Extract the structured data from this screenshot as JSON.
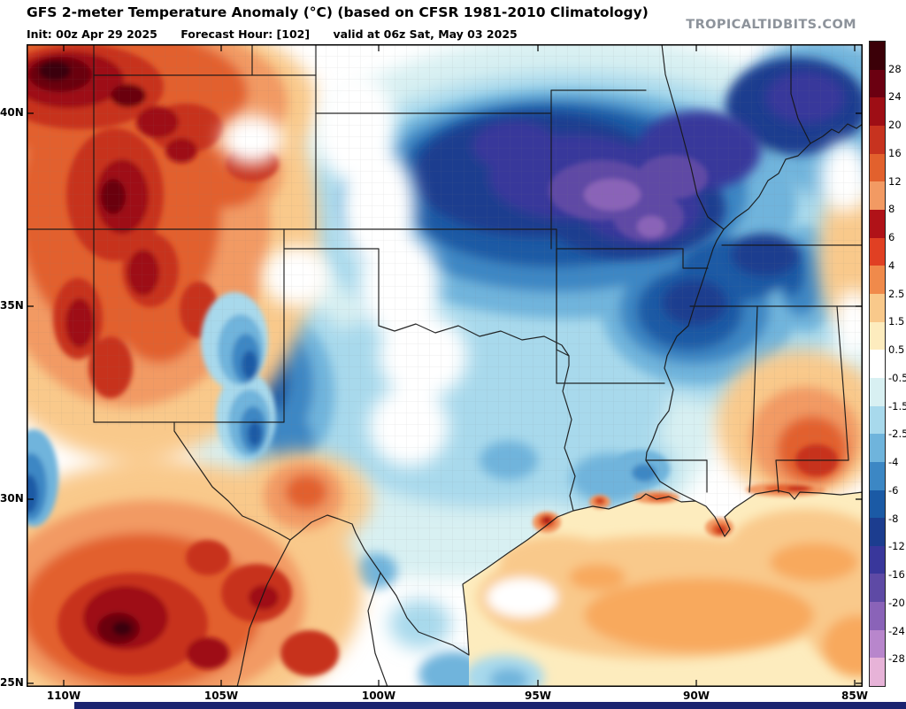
{
  "header": {
    "title": "GFS 2-meter Temperature Anomaly (°C) (based on CFSR 1981-2010 Climatology)",
    "init": "Init: 00z Apr 29 2025",
    "forecast_hour": "Forecast Hour: [102]",
    "valid": "valid at 06z Sat, May 03 2025",
    "watermark": "TROPICALTIDBITS.COM"
  },
  "map": {
    "lat_labels": [
      "40N",
      "35N",
      "30N",
      "25N"
    ],
    "lon_labels": [
      "110W",
      "105W",
      "100W",
      "95W",
      "90W",
      "85W"
    ],
    "regions": [
      {
        "area": "Colorado / New Mexico / far west Texas",
        "anomaly_c": "+8 to +28 warm"
      },
      {
        "area": "northern Mexico (Chihuahua / Coahuila)",
        "anomaly_c": "+8 to +24 warm"
      },
      {
        "area": "Kansas / Missouri / Arkansas / mid-Mississippi Valley",
        "anomaly_c": "-8 to -20 cold, purple core over Missouri-Arkansas"
      },
      {
        "area": "Oklahoma / north and central Texas",
        "anomaly_c": "-0.5 to -6 cool"
      },
      {
        "area": "eastern New Mexico / Texas panhandle pocket",
        "anomaly_c": "-4 to -8 cold"
      },
      {
        "area": "Gulf of Mexico waters",
        "anomaly_c": "+0.5 to +4 mild warm"
      },
      {
        "area": "southern Mississippi / Alabama and Gulf coast strip",
        "anomaly_c": "+2 to +8 warm"
      },
      {
        "area": "Galveston and coastal Louisiana hot spots",
        "anomaly_c": "+6 to +8"
      }
    ]
  },
  "colorbar": {
    "unit": "°C",
    "tick_labels": [
      "28",
      "24",
      "20",
      "16",
      "12",
      "8",
      "6",
      "4",
      "2.5",
      "1.5",
      "0.5",
      "-0.5",
      "-1.5",
      "-2.5",
      "-4",
      "-6",
      "-8",
      "-12",
      "-16",
      "-20",
      "-24",
      "-28"
    ],
    "colors": [
      "#3b0008",
      "#6b0011",
      "#9e0e15",
      "#c7331f",
      "#e2612d",
      "#f29a63",
      "#b01218",
      "#e04023",
      "#f08a4b",
      "#f9c98b",
      "#fdecbe",
      "#ffffff",
      "#d8f0f2",
      "#a8d9ec",
      "#6fb4dc",
      "#3c87c4",
      "#1b5aa5",
      "#1c3d8f",
      "#39379b",
      "#5e4aa5",
      "#8a63b8",
      "#b886cc",
      "#e7b3d8"
    ]
  }
}
